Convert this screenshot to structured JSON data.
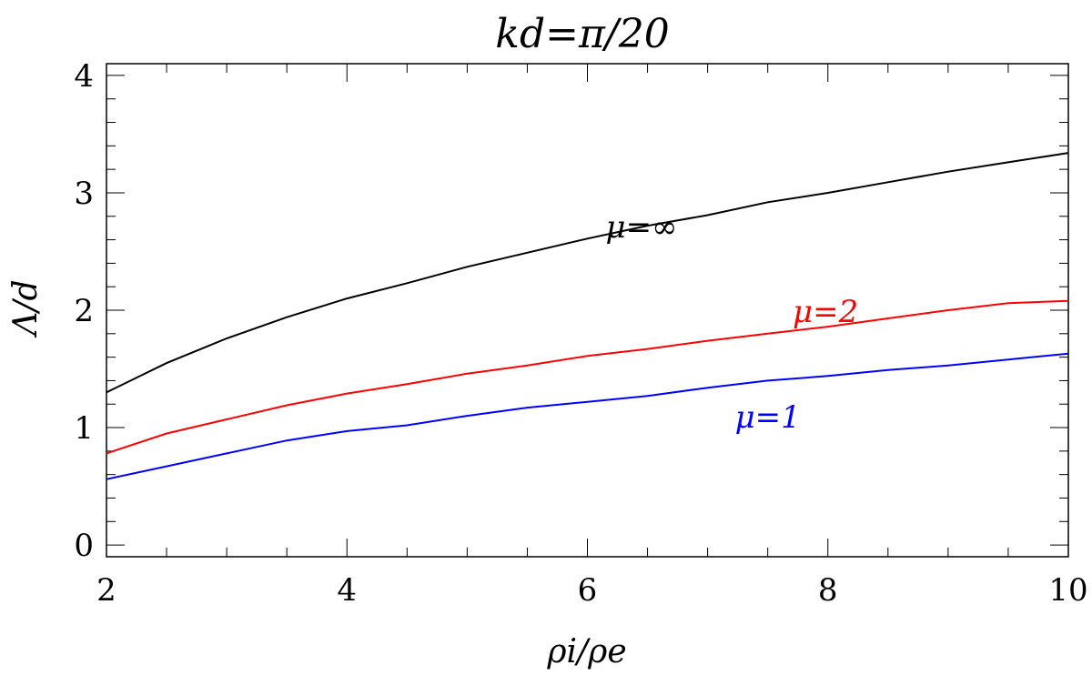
{
  "chart_data": {
    "type": "line",
    "title": "kd=π/20",
    "xlabel": "ρi/ρe",
    "ylabel": "Λ/d",
    "xlim": [
      2,
      10
    ],
    "ylim": [
      -0.1,
      4.1
    ],
    "x_major_ticks": [
      2,
      4,
      6,
      8,
      10
    ],
    "x_minor_step": 0.5,
    "y_major_ticks": [
      0,
      1,
      2,
      3,
      4
    ],
    "y_minor_step": 0.2,
    "grid": false,
    "series": [
      {
        "name": "μ=∞",
        "color": "#000000",
        "x": [
          2,
          2.5,
          3,
          3.5,
          4,
          4.5,
          5,
          5.5,
          6,
          6.5,
          7,
          7.5,
          8,
          8.5,
          9,
          9.5,
          10
        ],
        "y": [
          1.3,
          1.55,
          1.76,
          1.94,
          2.1,
          2.23,
          2.37,
          2.49,
          2.61,
          2.72,
          2.81,
          2.92,
          3.0,
          3.09,
          3.18,
          3.26,
          3.34
        ],
        "label_pos": {
          "x": 6.45,
          "y": 2.62
        }
      },
      {
        "name": "μ=2",
        "color": "#ff0000",
        "x": [
          2,
          2.5,
          3,
          3.5,
          4,
          4.5,
          5,
          5.5,
          6,
          6.5,
          7,
          7.5,
          8,
          8.5,
          9,
          9.5,
          10
        ],
        "y": [
          0.78,
          0.95,
          1.07,
          1.19,
          1.29,
          1.37,
          1.46,
          1.53,
          1.61,
          1.67,
          1.74,
          1.8,
          1.86,
          1.93,
          2.0,
          2.06,
          2.08
        ],
        "label_pos": {
          "x": 7.98,
          "y": 1.9
        }
      },
      {
        "name": "μ=1",
        "color": "#0000ff",
        "x": [
          2,
          2.5,
          3,
          3.5,
          4,
          4.5,
          5,
          5.5,
          6,
          6.5,
          7,
          7.5,
          8,
          8.5,
          9,
          9.5,
          10
        ],
        "y": [
          0.56,
          0.67,
          0.78,
          0.89,
          0.97,
          1.02,
          1.1,
          1.17,
          1.22,
          1.27,
          1.34,
          1.4,
          1.44,
          1.49,
          1.53,
          1.58,
          1.63
        ],
        "label_pos": {
          "x": 7.5,
          "y": 1.0
        }
      }
    ]
  }
}
